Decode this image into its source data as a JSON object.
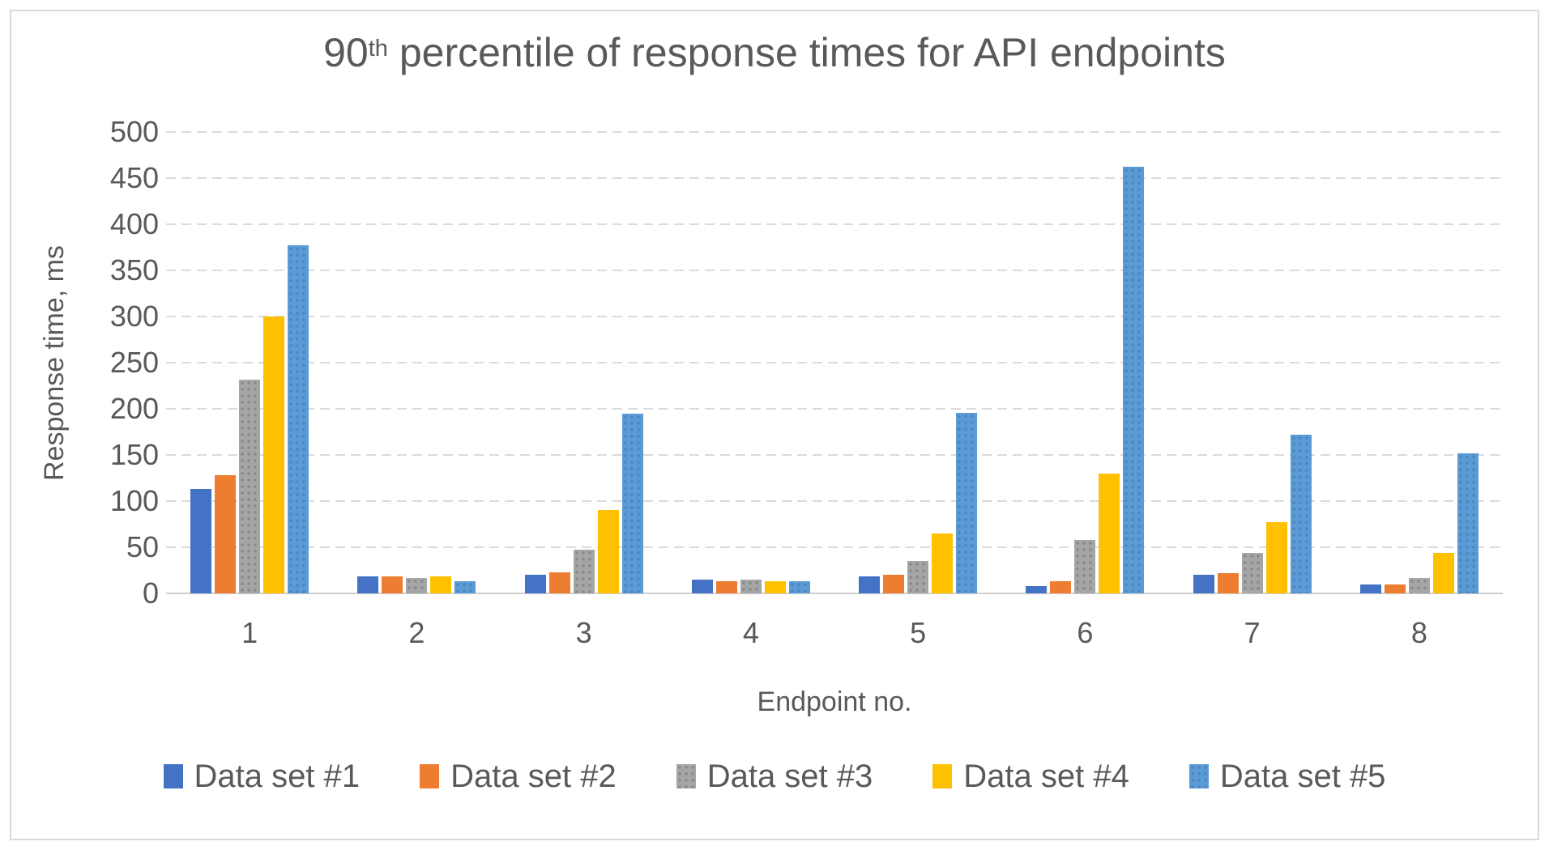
{
  "chart": {
    "title": {
      "prefix": "90",
      "superscript": "th",
      "rest": " percentile of response times for API endpoints"
    }
  },
  "chart_data": {
    "type": "bar",
    "title": "90th percentile of response times for API endpoints",
    "xlabel": "Endpoint no.",
    "ylabel": "Response time, ms",
    "ylim": [
      0,
      500
    ],
    "ytick_step": 50,
    "grid": true,
    "legend_position": "bottom",
    "categories": [
      "1",
      "2",
      "3",
      "4",
      "5",
      "6",
      "7",
      "8"
    ],
    "series": [
      {
        "name": "Data set #1",
        "color": "#4472C4",
        "pattern": "solid",
        "values": [
          113,
          18,
          20,
          15,
          18,
          8,
          20,
          10
        ]
      },
      {
        "name": "Data set #2",
        "color": "#ED7D31",
        "pattern": "solid",
        "values": [
          128,
          18,
          23,
          13,
          20,
          13,
          22,
          10
        ]
      },
      {
        "name": "Data set #3",
        "color": "#A5A5A5",
        "pattern": "dots",
        "dot_color": "#878787",
        "values": [
          232,
          17,
          47,
          15,
          35,
          58,
          44,
          17
        ]
      },
      {
        "name": "Data set #4",
        "color": "#FFC000",
        "pattern": "solid",
        "values": [
          300,
          18,
          90,
          13,
          65,
          130,
          77,
          44
        ]
      },
      {
        "name": "Data set #5",
        "color": "#5B9BD5",
        "pattern": "dots",
        "dot_color": "#4A84BC",
        "values": [
          377,
          13,
          195,
          13,
          196,
          462,
          172,
          152
        ]
      }
    ],
    "colors": {
      "text": "#595959",
      "gridline": "#DBDBDB",
      "axis_line": "#CFCFCF",
      "card_border": "#D9D9D9",
      "background": "#FFFFFF"
    }
  }
}
